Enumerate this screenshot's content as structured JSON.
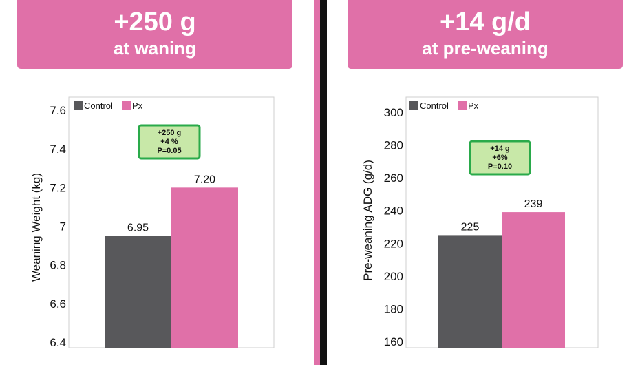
{
  "left_banner": {
    "headline": "+250 g",
    "subtitle": "at waning"
  },
  "right_banner": {
    "headline": "+14 g/d",
    "subtitle": "at pre-weaning"
  },
  "colors": {
    "banner": "#e070a8",
    "control": "#58585b",
    "px": "#e070a8",
    "annotation_fill": "#c8e8a8",
    "annotation_border": "#2aaa4a"
  },
  "chart_data": [
    {
      "type": "bar",
      "categories": [
        "Control",
        "Px"
      ],
      "values": [
        6.95,
        7.2
      ],
      "data_labels": [
        "6.95",
        "7.20"
      ],
      "legend": [
        "Control",
        "Px"
      ],
      "legend_position": "top-left",
      "ylabel": "Weaning Weight (kg)",
      "xlabel": "",
      "ylim": [
        6.4,
        7.6
      ],
      "yticks": [
        6.4,
        6.6,
        6.8,
        7.0,
        7.2,
        7.4,
        7.6
      ],
      "ytick_labels": [
        "6.4",
        "6.6",
        "6.8",
        "7",
        "7.2",
        "7.4",
        "7.6"
      ],
      "grid": false,
      "annotation": [
        "+250 g",
        "+4 %",
        "P=0.05"
      ]
    },
    {
      "type": "bar",
      "categories": [
        "Control",
        "Px"
      ],
      "values": [
        225,
        239
      ],
      "data_labels": [
        "225",
        "239"
      ],
      "legend": [
        "Control",
        "Px"
      ],
      "legend_position": "top-left",
      "ylabel": "Pre-weaning ADG (g/d)",
      "xlabel": "",
      "ylim": [
        160,
        300
      ],
      "yticks": [
        160,
        180,
        200,
        220,
        240,
        260,
        280,
        300
      ],
      "ytick_labels": [
        "160",
        "180",
        "200",
        "220",
        "240",
        "260",
        "280",
        "300"
      ],
      "grid": false,
      "annotation": [
        "+14 g",
        "+6%",
        "P=0.10"
      ]
    }
  ]
}
